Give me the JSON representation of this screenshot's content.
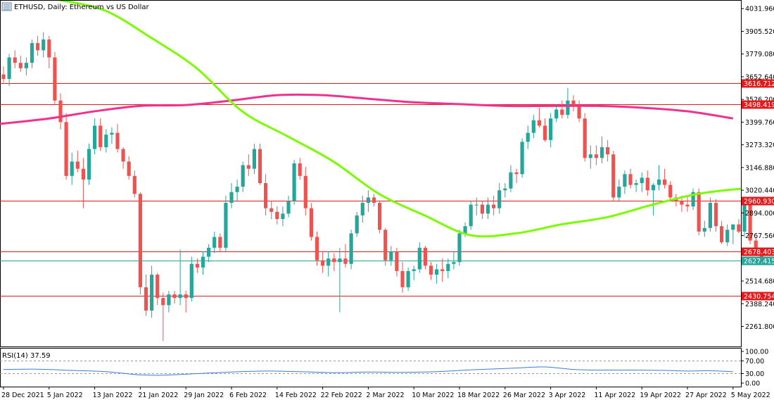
{
  "window": {
    "title": "ETHUSD, Daily:  Ethereum vs US Dollar"
  },
  "colors": {
    "background": "#ffffff",
    "bull": "#26a69a",
    "bear": "#ef5350",
    "ma_fast": "#7cfc00",
    "ma_slow": "#f0328c",
    "level_line": "#e31a1c",
    "current_price_line": "#26a69a",
    "rsi_line": "#3a7bd5",
    "grid": "#e6e6e6",
    "axis": "#000000"
  },
  "chart_data": [
    {
      "type": "candlestick",
      "title": "ETHUSD, Daily:  Ethereum vs US Dollar",
      "ylim": [
        2150,
        4080
      ],
      "y_ticks": [
        "4031.960",
        "3905.520",
        "3779.080",
        "3652.640",
        "3526.200",
        "3399.760",
        "3273.320",
        "3146.880",
        "3020.440",
        "2894.000",
        "2767.560",
        "2514.680",
        "2388.240",
        "2261.800"
      ],
      "x_ticks": [
        "28 Dec 2021",
        "5 Jan 2022",
        "13 Jan 2022",
        "21 Jan 2022",
        "29 Jan 2022",
        "6 Feb 2022",
        "14 Feb 2022",
        "22 Feb 2022",
        "2 Mar 2022",
        "10 Mar 2022",
        "18 Mar 2022",
        "26 Mar 2022",
        "3 Apr 2022",
        "11 Apr 2022",
        "19 Apr 2022",
        "27 Apr 2022",
        "5 May 2022"
      ],
      "x_tick_index": [
        0,
        8,
        16,
        24,
        32,
        40,
        48,
        56,
        64,
        72,
        80,
        88,
        96,
        104,
        112,
        120,
        128
      ],
      "candles": [
        {
          "o": 3665,
          "h": 3710,
          "l": 3620,
          "c": 3640
        },
        {
          "o": 3640,
          "h": 3780,
          "l": 3600,
          "c": 3760
        },
        {
          "o": 3760,
          "h": 3800,
          "l": 3700,
          "c": 3730
        },
        {
          "o": 3730,
          "h": 3770,
          "l": 3680,
          "c": 3700
        },
        {
          "o": 3700,
          "h": 3760,
          "l": 3660,
          "c": 3730
        },
        {
          "o": 3730,
          "h": 3860,
          "l": 3700,
          "c": 3840
        },
        {
          "o": 3840,
          "h": 3880,
          "l": 3770,
          "c": 3800
        },
        {
          "o": 3800,
          "h": 3900,
          "l": 3760,
          "c": 3860
        },
        {
          "o": 3860,
          "h": 3880,
          "l": 3700,
          "c": 3760
        },
        {
          "o": 3760,
          "h": 3790,
          "l": 3500,
          "c": 3520
        },
        {
          "o": 3520,
          "h": 3560,
          "l": 3360,
          "c": 3400
        },
        {
          "o": 3400,
          "h": 3450,
          "l": 3080,
          "c": 3100
        },
        {
          "o": 3100,
          "h": 3230,
          "l": 3050,
          "c": 3180
        },
        {
          "o": 3180,
          "h": 3240,
          "l": 3120,
          "c": 3140
        },
        {
          "o": 3140,
          "h": 3200,
          "l": 2920,
          "c": 3080
        },
        {
          "o": 3080,
          "h": 3280,
          "l": 3050,
          "c": 3250
        },
        {
          "o": 3250,
          "h": 3420,
          "l": 3220,
          "c": 3380
        },
        {
          "o": 3380,
          "h": 3420,
          "l": 3240,
          "c": 3260
        },
        {
          "o": 3260,
          "h": 3360,
          "l": 3230,
          "c": 3330
        },
        {
          "o": 3330,
          "h": 3370,
          "l": 3280,
          "c": 3340
        },
        {
          "o": 3340,
          "h": 3390,
          "l": 3230,
          "c": 3250
        },
        {
          "o": 3250,
          "h": 3260,
          "l": 3140,
          "c": 3180
        },
        {
          "o": 3180,
          "h": 3210,
          "l": 3080,
          "c": 3100
        },
        {
          "o": 3100,
          "h": 3130,
          "l": 2980,
          "c": 3000
        },
        {
          "o": 3000,
          "h": 3010,
          "l": 2440,
          "c": 2480
        },
        {
          "o": 2480,
          "h": 2550,
          "l": 2320,
          "c": 2350
        },
        {
          "o": 2350,
          "h": 2600,
          "l": 2310,
          "c": 2550
        },
        {
          "o": 2550,
          "h": 2560,
          "l": 2380,
          "c": 2420
        },
        {
          "o": 2420,
          "h": 2450,
          "l": 2180,
          "c": 2380
        },
        {
          "o": 2380,
          "h": 2460,
          "l": 2340,
          "c": 2440
        },
        {
          "o": 2440,
          "h": 2460,
          "l": 2390,
          "c": 2420
        },
        {
          "o": 2420,
          "h": 2690,
          "l": 2380,
          "c": 2440
        },
        {
          "o": 2440,
          "h": 2460,
          "l": 2340,
          "c": 2420
        },
        {
          "o": 2420,
          "h": 2650,
          "l": 2400,
          "c": 2610
        },
        {
          "o": 2610,
          "h": 2640,
          "l": 2560,
          "c": 2590
        },
        {
          "o": 2590,
          "h": 2680,
          "l": 2550,
          "c": 2650
        },
        {
          "o": 2650,
          "h": 2720,
          "l": 2620,
          "c": 2700
        },
        {
          "o": 2700,
          "h": 2790,
          "l": 2670,
          "c": 2760
        },
        {
          "o": 2760,
          "h": 2780,
          "l": 2680,
          "c": 2700
        },
        {
          "o": 2700,
          "h": 2990,
          "l": 2680,
          "c": 2950
        },
        {
          "o": 2950,
          "h": 3060,
          "l": 2920,
          "c": 3010
        },
        {
          "o": 3010,
          "h": 3080,
          "l": 2960,
          "c": 3040
        },
        {
          "o": 3040,
          "h": 3180,
          "l": 3010,
          "c": 3160
        },
        {
          "o": 3160,
          "h": 3220,
          "l": 3100,
          "c": 3140
        },
        {
          "o": 3140,
          "h": 3280,
          "l": 3110,
          "c": 3250
        },
        {
          "o": 3250,
          "h": 3280,
          "l": 3050,
          "c": 3060
        },
        {
          "o": 3060,
          "h": 3110,
          "l": 2880,
          "c": 2920
        },
        {
          "o": 2920,
          "h": 2960,
          "l": 2860,
          "c": 2900
        },
        {
          "o": 2900,
          "h": 2930,
          "l": 2830,
          "c": 2860
        },
        {
          "o": 2860,
          "h": 2930,
          "l": 2820,
          "c": 2890
        },
        {
          "o": 2890,
          "h": 2990,
          "l": 2870,
          "c": 2960
        },
        {
          "o": 2960,
          "h": 3190,
          "l": 2940,
          "c": 3170
        },
        {
          "o": 3170,
          "h": 3200,
          "l": 3080,
          "c": 3100
        },
        {
          "o": 3100,
          "h": 3150,
          "l": 2880,
          "c": 2920
        },
        {
          "o": 2920,
          "h": 2950,
          "l": 2740,
          "c": 2760
        },
        {
          "o": 2760,
          "h": 2790,
          "l": 2600,
          "c": 2630
        },
        {
          "o": 2630,
          "h": 2680,
          "l": 2560,
          "c": 2600
        },
        {
          "o": 2600,
          "h": 2680,
          "l": 2540,
          "c": 2640
        },
        {
          "o": 2640,
          "h": 2670,
          "l": 2570,
          "c": 2620
        },
        {
          "o": 2620,
          "h": 2700,
          "l": 2340,
          "c": 2640
        },
        {
          "o": 2640,
          "h": 2720,
          "l": 2590,
          "c": 2610
        },
        {
          "o": 2610,
          "h": 2800,
          "l": 2580,
          "c": 2780
        },
        {
          "o": 2780,
          "h": 2900,
          "l": 2760,
          "c": 2880
        },
        {
          "o": 2880,
          "h": 2990,
          "l": 2840,
          "c": 2950
        },
        {
          "o": 2950,
          "h": 3020,
          "l": 2900,
          "c": 2980
        },
        {
          "o": 2980,
          "h": 3000,
          "l": 2930,
          "c": 2950
        },
        {
          "o": 2950,
          "h": 2960,
          "l": 2780,
          "c": 2800
        },
        {
          "o": 2800,
          "h": 2810,
          "l": 2600,
          "c": 2630
        },
        {
          "o": 2630,
          "h": 2710,
          "l": 2600,
          "c": 2680
        },
        {
          "o": 2680,
          "h": 2700,
          "l": 2540,
          "c": 2570
        },
        {
          "o": 2570,
          "h": 2620,
          "l": 2450,
          "c": 2480
        },
        {
          "o": 2480,
          "h": 2590,
          "l": 2460,
          "c": 2570
        },
        {
          "o": 2570,
          "h": 2600,
          "l": 2520,
          "c": 2580
        },
        {
          "o": 2580,
          "h": 2730,
          "l": 2560,
          "c": 2700
        },
        {
          "o": 2700,
          "h": 2710,
          "l": 2580,
          "c": 2600
        },
        {
          "o": 2600,
          "h": 2620,
          "l": 2520,
          "c": 2550
        },
        {
          "o": 2550,
          "h": 2610,
          "l": 2500,
          "c": 2580
        },
        {
          "o": 2580,
          "h": 2640,
          "l": 2510,
          "c": 2570
        },
        {
          "o": 2570,
          "h": 2640,
          "l": 2530,
          "c": 2610
        },
        {
          "o": 2610,
          "h": 2680,
          "l": 2580,
          "c": 2620
        },
        {
          "o": 2620,
          "h": 2800,
          "l": 2600,
          "c": 2780
        },
        {
          "o": 2780,
          "h": 2840,
          "l": 2760,
          "c": 2820
        },
        {
          "o": 2820,
          "h": 2960,
          "l": 2800,
          "c": 2940
        },
        {
          "o": 2940,
          "h": 2980,
          "l": 2880,
          "c": 2940
        },
        {
          "o": 2940,
          "h": 2960,
          "l": 2860,
          "c": 2890
        },
        {
          "o": 2890,
          "h": 2980,
          "l": 2860,
          "c": 2940
        },
        {
          "o": 2940,
          "h": 2990,
          "l": 2880,
          "c": 2920
        },
        {
          "o": 2920,
          "h": 3060,
          "l": 2890,
          "c": 3020
        },
        {
          "o": 3020,
          "h": 3060,
          "l": 2980,
          "c": 3030
        },
        {
          "o": 3030,
          "h": 3160,
          "l": 3010,
          "c": 3120
        },
        {
          "o": 3120,
          "h": 3140,
          "l": 3060,
          "c": 3110
        },
        {
          "o": 3110,
          "h": 3310,
          "l": 3090,
          "c": 3290
        },
        {
          "o": 3290,
          "h": 3380,
          "l": 3250,
          "c": 3340
        },
        {
          "o": 3340,
          "h": 3440,
          "l": 3310,
          "c": 3410
        },
        {
          "o": 3410,
          "h": 3480,
          "l": 3370,
          "c": 3380
        },
        {
          "o": 3380,
          "h": 3420,
          "l": 3290,
          "c": 3300
        },
        {
          "o": 3300,
          "h": 3450,
          "l": 3260,
          "c": 3420
        },
        {
          "o": 3420,
          "h": 3500,
          "l": 3400,
          "c": 3470
        },
        {
          "o": 3470,
          "h": 3520,
          "l": 3420,
          "c": 3440
        },
        {
          "o": 3440,
          "h": 3590,
          "l": 3420,
          "c": 3520
        },
        {
          "o": 3520,
          "h": 3550,
          "l": 3460,
          "c": 3490
        },
        {
          "o": 3490,
          "h": 3520,
          "l": 3400,
          "c": 3420
        },
        {
          "o": 3420,
          "h": 3450,
          "l": 3180,
          "c": 3200
        },
        {
          "o": 3200,
          "h": 3270,
          "l": 3140,
          "c": 3220
        },
        {
          "o": 3220,
          "h": 3270,
          "l": 3160,
          "c": 3200
        },
        {
          "o": 3200,
          "h": 3320,
          "l": 3170,
          "c": 3260
        },
        {
          "o": 3260,
          "h": 3300,
          "l": 3180,
          "c": 3220
        },
        {
          "o": 3220,
          "h": 3240,
          "l": 2960,
          "c": 2980
        },
        {
          "o": 2980,
          "h": 3080,
          "l": 2960,
          "c": 3040
        },
        {
          "o": 3040,
          "h": 3130,
          "l": 3000,
          "c": 3110
        },
        {
          "o": 3110,
          "h": 3140,
          "l": 3030,
          "c": 3050
        },
        {
          "o": 3050,
          "h": 3080,
          "l": 3010,
          "c": 3060
        },
        {
          "o": 3060,
          "h": 3120,
          "l": 3010,
          "c": 3090
        },
        {
          "o": 3090,
          "h": 3130,
          "l": 2990,
          "c": 3020
        },
        {
          "o": 3020,
          "h": 3060,
          "l": 2880,
          "c": 3050
        },
        {
          "o": 3050,
          "h": 3160,
          "l": 3020,
          "c": 3080
        },
        {
          "o": 3080,
          "h": 3140,
          "l": 3030,
          "c": 3050
        },
        {
          "o": 3050,
          "h": 3070,
          "l": 2960,
          "c": 2980
        },
        {
          "o": 2980,
          "h": 3000,
          "l": 2930,
          "c": 2960
        },
        {
          "o": 2960,
          "h": 2990,
          "l": 2900,
          "c": 2940
        },
        {
          "o": 2940,
          "h": 2990,
          "l": 2900,
          "c": 2930
        },
        {
          "o": 2930,
          "h": 3030,
          "l": 2910,
          "c": 3010
        },
        {
          "o": 3010,
          "h": 3030,
          "l": 2770,
          "c": 2790
        },
        {
          "o": 2790,
          "h": 2850,
          "l": 2760,
          "c": 2810
        },
        {
          "o": 2810,
          "h": 2980,
          "l": 2790,
          "c": 2950
        },
        {
          "o": 2950,
          "h": 2970,
          "l": 2790,
          "c": 2820
        },
        {
          "o": 2820,
          "h": 2850,
          "l": 2720,
          "c": 2730
        },
        {
          "o": 2730,
          "h": 2830,
          "l": 2710,
          "c": 2800
        },
        {
          "o": 2800,
          "h": 2830,
          "l": 2720,
          "c": 2830
        },
        {
          "o": 2830,
          "h": 2860,
          "l": 2780,
          "c": 2790
        },
        {
          "o": 2790,
          "h": 2970,
          "l": 2760,
          "c": 2950
        },
        {
          "o": 2950,
          "h": 2970,
          "l": 2720,
          "c": 2740
        },
        {
          "o": 2740,
          "h": 2760,
          "l": 2670,
          "c": 2690
        },
        {
          "o": 2690,
          "h": 2700,
          "l": 2610,
          "c": 2640
        }
      ],
      "ma_fast": [
        [
          0,
          4080
        ],
        [
          8,
          4020
        ],
        [
          16,
          3870
        ],
        [
          24,
          3700
        ],
        [
          32,
          3460
        ],
        [
          40,
          3320
        ],
        [
          48,
          3180
        ],
        [
          56,
          3000
        ],
        [
          64,
          2880
        ],
        [
          72,
          2770
        ],
        [
          80,
          2780
        ],
        [
          88,
          2830
        ],
        [
          96,
          2870
        ],
        [
          104,
          2940
        ],
        [
          112,
          3000
        ],
        [
          120,
          3030
        ],
        [
          128,
          3045
        ]
      ],
      "ma_slow": [
        [
          0,
          3390
        ],
        [
          8,
          3420
        ],
        [
          16,
          3460
        ],
        [
          24,
          3490
        ],
        [
          32,
          3495
        ],
        [
          40,
          3520
        ],
        [
          48,
          3550
        ],
        [
          56,
          3550
        ],
        [
          64,
          3530
        ],
        [
          72,
          3510
        ],
        [
          80,
          3500
        ],
        [
          88,
          3490
        ],
        [
          96,
          3490
        ],
        [
          104,
          3490
        ],
        [
          112,
          3480
        ],
        [
          120,
          3460
        ],
        [
          128,
          3420
        ]
      ],
      "levels": [
        {
          "value": 3616.712,
          "label": "3616.712"
        },
        {
          "value": 3498.419,
          "label": "3498.419"
        },
        {
          "value": 2960.93,
          "label": "2960.930"
        },
        {
          "value": 2678.403,
          "label": "2678.403"
        },
        {
          "value": 2430.754,
          "label": "2430.754"
        }
      ],
      "current_price": {
        "value": 2627.415,
        "label": "2627.415"
      }
    },
    {
      "type": "line",
      "title": "RSI(14) 37.59",
      "ylim": [
        0,
        100
      ],
      "y_ticks": [
        "100.00",
        "70.00",
        "30.00",
        "0.00"
      ],
      "guide_levels": [
        70,
        30
      ],
      "values": [
        [
          0,
          43
        ],
        [
          6,
          44
        ],
        [
          12,
          40
        ],
        [
          18,
          36
        ],
        [
          24,
          26
        ],
        [
          28,
          25
        ],
        [
          34,
          30
        ],
        [
          40,
          35
        ],
        [
          46,
          38
        ],
        [
          52,
          36
        ],
        [
          58,
          33
        ],
        [
          64,
          35
        ],
        [
          70,
          34
        ],
        [
          76,
          36
        ],
        [
          82,
          42
        ],
        [
          88,
          46
        ],
        [
          94,
          51
        ],
        [
          96,
          50
        ],
        [
          100,
          43
        ],
        [
          104,
          41
        ],
        [
          110,
          41
        ],
        [
          116,
          40
        ],
        [
          120,
          38
        ],
        [
          124,
          39
        ],
        [
          128,
          36
        ]
      ]
    }
  ]
}
